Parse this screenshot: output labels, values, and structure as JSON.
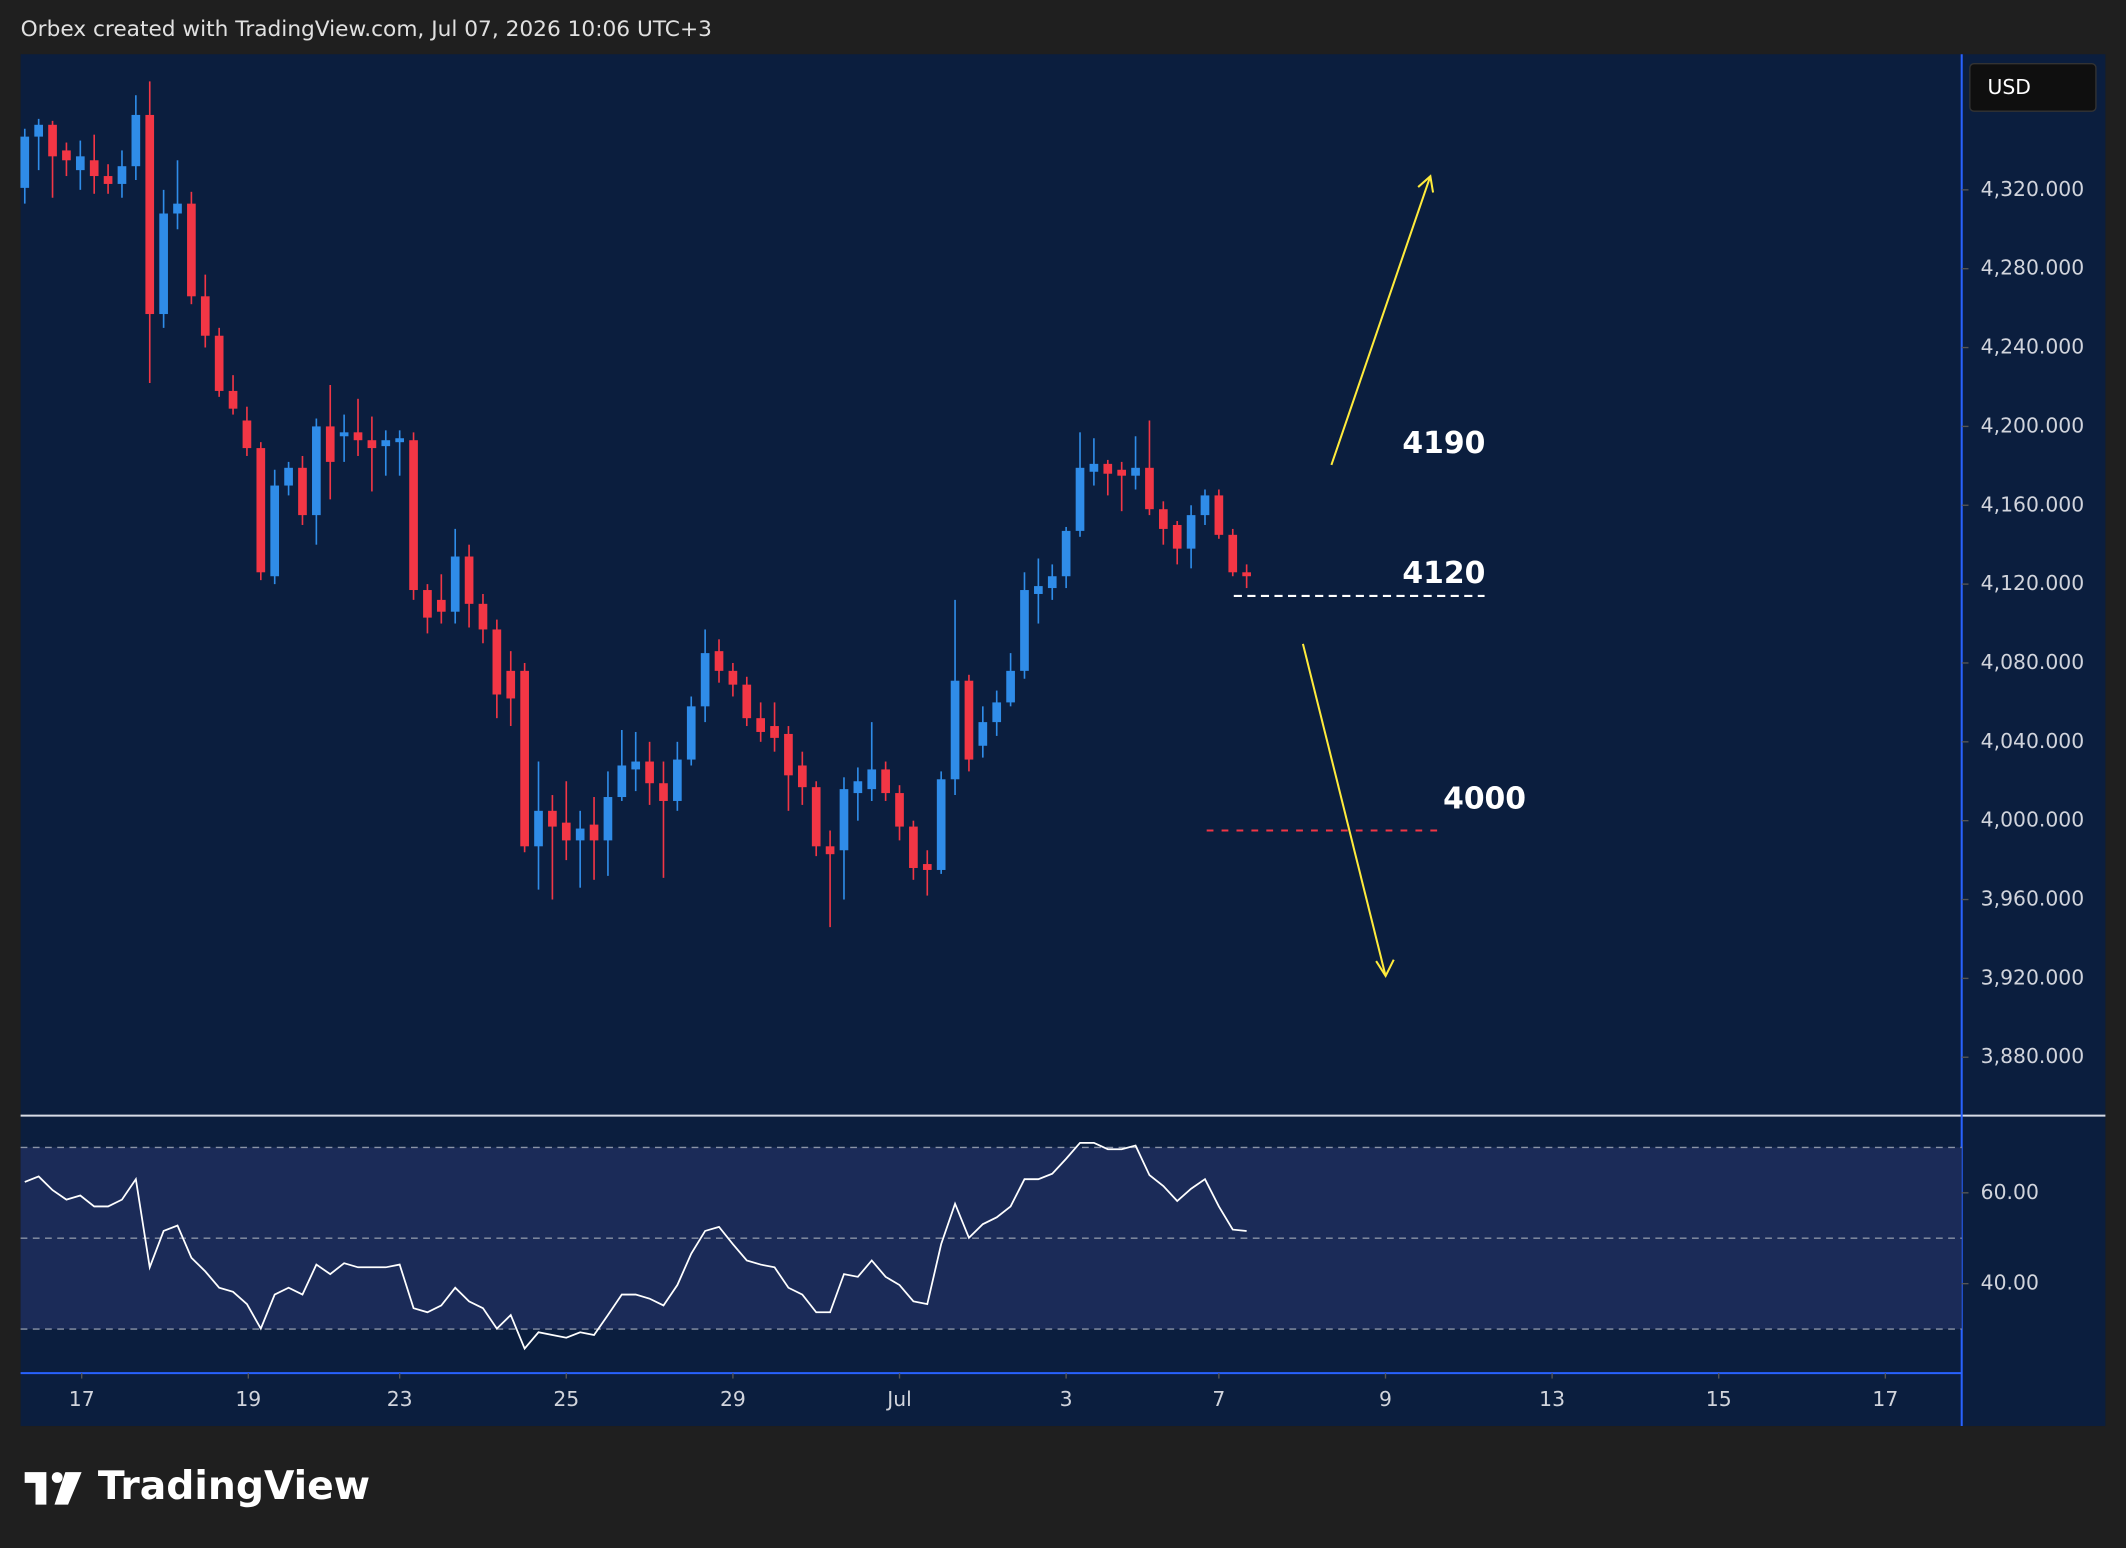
{
  "chart_data": {
    "type": "candlestick",
    "title": "Orbex created with TradingView.com, Jul 07, 2026 10:06 UTC+3",
    "currency": "USD",
    "x": [
      0,
      1,
      2,
      3,
      4,
      5,
      6,
      7,
      8,
      9,
      10,
      11,
      12,
      13,
      14,
      15,
      16,
      17,
      18,
      19,
      20,
      21,
      22,
      23,
      24,
      25,
      26,
      27,
      28,
      29,
      30,
      31,
      32,
      33,
      34,
      35,
      36,
      37,
      38,
      39,
      40,
      41,
      42,
      43,
      44,
      45,
      46,
      47,
      48,
      49,
      50,
      51,
      52,
      53,
      54,
      55,
      56,
      57,
      58,
      59,
      60,
      61,
      62,
      63,
      64,
      65,
      66,
      67,
      68,
      69,
      70,
      71,
      72,
      73,
      74,
      75,
      76,
      77,
      78,
      79,
      80,
      81,
      82,
      83,
      84,
      85,
      86,
      87,
      88
    ],
    "open": [
      4321,
      4347,
      4353,
      4340,
      4330,
      4335,
      4327,
      4323,
      4332,
      4358,
      4257,
      4308,
      4313,
      4266,
      4246,
      4218,
      4203,
      4189,
      4124,
      4170,
      4179,
      4155,
      4200,
      4195,
      4197,
      4193,
      4190,
      4192,
      4193,
      4117,
      4112,
      4106,
      4134,
      4110,
      4097,
      4076,
      4076,
      3987,
      4005,
      3999,
      3990,
      3998,
      3990,
      4012,
      4026,
      4030,
      4019,
      4010,
      4031,
      4058,
      4086,
      4076,
      4069,
      4052,
      4048,
      4044,
      4028,
      4017,
      3987,
      3985,
      4014,
      4016,
      4026,
      4014,
      3997,
      3978,
      3975,
      4021,
      4071,
      4038,
      4050,
      4060,
      4076,
      4115,
      4118,
      4124,
      4147,
      4177,
      4181,
      4178,
      4175,
      4179,
      4158,
      4150,
      4138,
      4155,
      4165,
      4145,
      4126
    ],
    "high": [
      4351,
      4356,
      4355,
      4344,
      4345,
      4348,
      4333,
      4340,
      4368,
      4375,
      4320,
      4335,
      4319,
      4277,
      4250,
      4226,
      4210,
      4192,
      4178,
      4182,
      4185,
      4204,
      4221,
      4206,
      4214,
      4205,
      4198,
      4198,
      4197,
      4120,
      4125,
      4148,
      4140,
      4115,
      4102,
      4086,
      4080,
      4030,
      4013,
      4020,
      4005,
      4012,
      4025,
      4046,
      4045,
      4040,
      4030,
      4040,
      4063,
      4097,
      4092,
      4080,
      4073,
      4060,
      4060,
      4048,
      4035,
      4020,
      3995,
      4022,
      4027,
      4050,
      4030,
      4018,
      4000,
      3985,
      4025,
      4112,
      4074,
      4058,
      4066,
      4085,
      4126,
      4133,
      4130,
      4149,
      4197,
      4194,
      4183,
      4182,
      4195,
      4203,
      4162,
      4152,
      4160,
      4168,
      4168,
      4148,
      4130
    ],
    "low": [
      4313,
      4330,
      4316,
      4327,
      4320,
      4318,
      4318,
      4316,
      4325,
      4222,
      4250,
      4300,
      4262,
      4240,
      4215,
      4206,
      4185,
      4122,
      4120,
      4165,
      4150,
      4140,
      4163,
      4182,
      4185,
      4167,
      4175,
      4175,
      4112,
      4095,
      4100,
      4100,
      4098,
      4090,
      4052,
      4048,
      3984,
      3965,
      3960,
      3980,
      3966,
      3970,
      3972,
      4010,
      4015,
      4008,
      3971,
      4005,
      4028,
      4050,
      4070,
      4063,
      4048,
      4040,
      4035,
      4005,
      4008,
      3982,
      3946,
      3960,
      4000,
      4010,
      4010,
      3990,
      3970,
      3962,
      3973,
      4013,
      4025,
      4032,
      4043,
      4058,
      4072,
      4100,
      4112,
      4118,
      4144,
      4170,
      4165,
      4157,
      4168,
      4155,
      4140,
      4130,
      4128,
      4150,
      4143,
      4124,
      4118
    ],
    "close": [
      4347,
      4353,
      4337,
      4335,
      4337,
      4327,
      4323,
      4332,
      4358,
      4257,
      4308,
      4313,
      4266,
      4246,
      4218,
      4209,
      4189,
      4126,
      4170,
      4179,
      4155,
      4200,
      4182,
      4197,
      4193,
      4189,
      4193,
      4194,
      4117,
      4103,
      4106,
      4134,
      4110,
      4097,
      4064,
      4062,
      3987,
      4005,
      3997,
      3990,
      3996,
      3990,
      4012,
      4028,
      4030,
      4019,
      4010,
      4031,
      4058,
      4085,
      4076,
      4069,
      4052,
      4045,
      4042,
      4023,
      4017,
      3987,
      3983,
      4016,
      4020,
      4026,
      4014,
      3997,
      3976,
      3975,
      4021,
      4071,
      4031,
      4050,
      4060,
      4076,
      4117,
      4119,
      4124,
      4147,
      4179,
      4181,
      4176,
      4175,
      4179,
      4158,
      4148,
      4138,
      4155,
      4165,
      4145,
      4126,
      4124
    ],
    "up_color": "#2f8ce8",
    "down_color": "#f23645",
    "xlim": [
      -0.3,
      139.5
    ],
    "xticks": [
      {
        "value": 4.1,
        "label": "17"
      },
      {
        "value": 16.1,
        "label": "19"
      },
      {
        "value": 27,
        "label": "23"
      },
      {
        "value": 39,
        "label": "25"
      },
      {
        "value": 51,
        "label": "29"
      },
      {
        "value": 63,
        "label": "Jul"
      },
      {
        "value": 75,
        "label": "3"
      },
      {
        "value": 86,
        "label": "7"
      },
      {
        "value": 98,
        "label": "9"
      },
      {
        "value": 110,
        "label": "13"
      },
      {
        "value": 122,
        "label": "15"
      },
      {
        "value": 134,
        "label": "17"
      }
    ],
    "ylim": [
      3850.4,
      4388.8
    ],
    "yticks": [
      {
        "value": 4320,
        "label": "4,320.000"
      },
      {
        "value": 4280,
        "label": "4,280.000"
      },
      {
        "value": 4240,
        "label": "4,240.000"
      },
      {
        "value": 4200,
        "label": "4,200.000"
      },
      {
        "value": 4160,
        "label": "4,160.000"
      },
      {
        "value": 4120,
        "label": "4,120.000"
      },
      {
        "value": 4080,
        "label": "4,080.000"
      },
      {
        "value": 4040,
        "label": "4,040.000"
      },
      {
        "value": 4000,
        "label": "4,000.000"
      },
      {
        "value": 3960,
        "label": "3,960.000"
      },
      {
        "value": 3920,
        "label": "3,920.000"
      },
      {
        "value": 3880,
        "label": "3,880.000"
      }
    ],
    "annotations": [
      {
        "text": "4190"
      },
      {
        "text": "4120",
        "line": 4114,
        "color": "#ffffff"
      },
      {
        "text": "4000",
        "line": 3995,
        "color": "#f23645"
      }
    ],
    "rsi": {
      "values": [
        62.4,
        63.6,
        60.6,
        58.5,
        59.4,
        57.0,
        57.0,
        58.5,
        63.0,
        43.6,
        51.6,
        52.8,
        45.7,
        42.7,
        39.1,
        38.2,
        35.5,
        30.1,
        37.6,
        39.1,
        37.6,
        44.2,
        42.1,
        44.5,
        43.6,
        43.6,
        43.6,
        44.2,
        34.6,
        33.7,
        35.2,
        39.1,
        36.1,
        34.6,
        30.1,
        33.1,
        25.7,
        29.3,
        28.7,
        28.1,
        29.3,
        28.7,
        33.1,
        37.6,
        37.6,
        36.7,
        35.2,
        39.7,
        46.6,
        51.6,
        52.5,
        48.7,
        45.1,
        44.2,
        43.6,
        39.1,
        37.6,
        33.7,
        33.7,
        42.1,
        41.5,
        45.1,
        41.5,
        39.7,
        36.1,
        35.5,
        48.7,
        57.6,
        50.1,
        53.1,
        54.6,
        57.0,
        63.0,
        63.0,
        64.2,
        67.5,
        71.0,
        71.0,
        69.6,
        69.6,
        70.4,
        63.9,
        61.5,
        58.2,
        60.9,
        63.0,
        57.0,
        51.9,
        51.6
      ],
      "color": "#ffffff",
      "ylim": [
        20.3,
        77
      ],
      "yticks": [
        {
          "value": 60,
          "label": "60.00"
        },
        {
          "value": 40,
          "label": "40.00"
        }
      ],
      "levels": [
        70,
        50,
        30
      ]
    }
  },
  "footer": {
    "brand": "TradingView"
  }
}
